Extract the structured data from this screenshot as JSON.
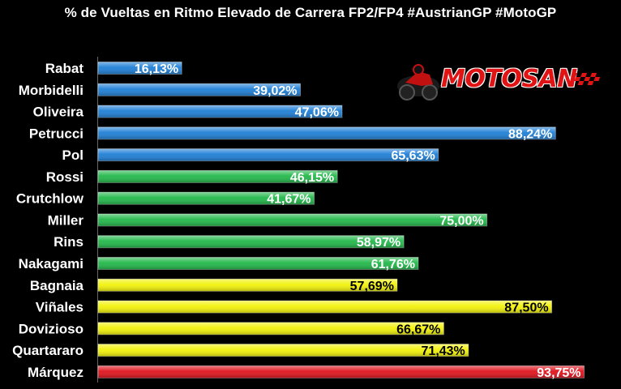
{
  "chart_data": {
    "type": "bar",
    "orientation": "horizontal",
    "title": "% de Vueltas en Ritmo Elevado de Carrera FP2/FP4 #AustrianGP #MotoGP",
    "categories": [
      "Rabat",
      "Morbidelli",
      "Oliveira",
      "Petrucci",
      "Pol",
      "Rossi",
      "Crutchlow",
      "Miller",
      "Rins",
      "Nakagami",
      "Bagnaia",
      "Viñales",
      "Dovizioso",
      "Quartararo",
      "Márquez"
    ],
    "values": [
      16.13,
      39.02,
      47.06,
      88.24,
      65.63,
      46.15,
      41.67,
      75.0,
      58.97,
      61.76,
      57.69,
      87.5,
      66.67,
      71.43,
      93.75
    ],
    "labels": [
      "16,13%",
      "39,02%",
      "47,06%",
      "88,24%",
      "65,63%",
      "46,15%",
      "41,67%",
      "75,00%",
      "58,97%",
      "61,76%",
      "57,69%",
      "87,50%",
      "66,67%",
      "71,43%",
      "93,75%"
    ],
    "bar_colors": [
      "#1f7fd6",
      "#1f7fd6",
      "#1f7fd6",
      "#1f7fd6",
      "#1f7fd6",
      "#22b84a",
      "#22b84a",
      "#22b84a",
      "#22b84a",
      "#22b84a",
      "#f2f20a",
      "#f2f20a",
      "#f2f20a",
      "#f2f20a",
      "#e0141e"
    ],
    "label_colors": [
      "#ffffff",
      "#ffffff",
      "#ffffff",
      "#ffffff",
      "#ffffff",
      "#ffffff",
      "#ffffff",
      "#ffffff",
      "#ffffff",
      "#ffffff",
      "#000000",
      "#000000",
      "#000000",
      "#000000",
      "#ffffff"
    ],
    "xlim": [
      0,
      100
    ],
    "grid": false,
    "legend": "none"
  },
  "logo": {
    "text": "MOTOSAN"
  },
  "colors": {
    "background": "#000000",
    "category_text": "#ffffff"
  }
}
